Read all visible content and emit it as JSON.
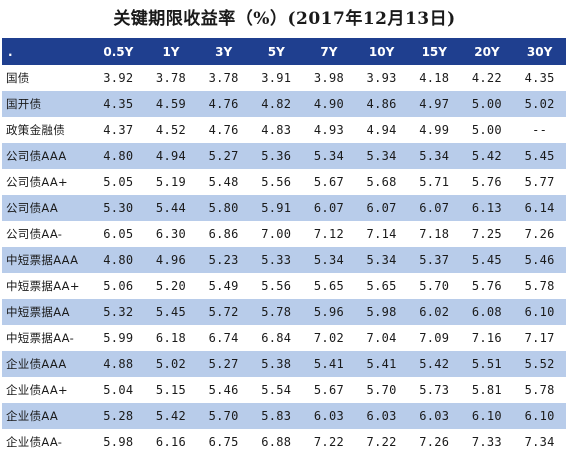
{
  "title": "关键期限收益率（%）(2017年12月13日)",
  "header": {
    "corner": ".",
    "columns": [
      "0.5Y",
      "1Y",
      "3Y",
      "5Y",
      "7Y",
      "10Y",
      "15Y",
      "20Y",
      "30Y"
    ]
  },
  "colors": {
    "header_bg": "#1f3f8f",
    "band": "#b8ccea"
  },
  "rows": [
    {
      "label": "国债",
      "values": [
        "3.92",
        "3.78",
        "3.78",
        "3.91",
        "3.98",
        "3.93",
        "4.18",
        "4.22",
        "4.35"
      ]
    },
    {
      "label": "国开债",
      "values": [
        "4.35",
        "4.59",
        "4.76",
        "4.82",
        "4.90",
        "4.86",
        "4.97",
        "5.00",
        "5.02"
      ]
    },
    {
      "label": "政策金融债",
      "values": [
        "4.37",
        "4.52",
        "4.76",
        "4.83",
        "4.93",
        "4.94",
        "4.99",
        "5.00",
        "--"
      ]
    },
    {
      "label": "公司债AAA",
      "values": [
        "4.80",
        "4.94",
        "5.27",
        "5.36",
        "5.34",
        "5.34",
        "5.34",
        "5.42",
        "5.45"
      ]
    },
    {
      "label": "公司债AA+",
      "values": [
        "5.05",
        "5.19",
        "5.48",
        "5.56",
        "5.67",
        "5.68",
        "5.71",
        "5.76",
        "5.77"
      ]
    },
    {
      "label": "公司债AA",
      "values": [
        "5.30",
        "5.44",
        "5.80",
        "5.91",
        "6.07",
        "6.07",
        "6.07",
        "6.13",
        "6.14"
      ]
    },
    {
      "label": "公司债AA-",
      "values": [
        "6.05",
        "6.30",
        "6.86",
        "7.00",
        "7.12",
        "7.14",
        "7.18",
        "7.25",
        "7.26"
      ]
    },
    {
      "label": "中短票据AAA",
      "values": [
        "4.80",
        "4.96",
        "5.23",
        "5.33",
        "5.34",
        "5.34",
        "5.37",
        "5.45",
        "5.46"
      ]
    },
    {
      "label": "中短票据AA+",
      "values": [
        "5.06",
        "5.20",
        "5.49",
        "5.56",
        "5.65",
        "5.65",
        "5.70",
        "5.76",
        "5.78"
      ]
    },
    {
      "label": "中短票据AA",
      "values": [
        "5.32",
        "5.45",
        "5.72",
        "5.78",
        "5.96",
        "5.98",
        "6.02",
        "6.08",
        "6.10"
      ]
    },
    {
      "label": "中短票据AA-",
      "values": [
        "5.99",
        "6.18",
        "6.74",
        "6.84",
        "7.02",
        "7.04",
        "7.09",
        "7.16",
        "7.17"
      ]
    },
    {
      "label": "企业债AAA",
      "values": [
        "4.88",
        "5.02",
        "5.27",
        "5.38",
        "5.41",
        "5.41",
        "5.42",
        "5.51",
        "5.52"
      ]
    },
    {
      "label": "企业债AA+",
      "values": [
        "5.04",
        "5.15",
        "5.46",
        "5.54",
        "5.67",
        "5.70",
        "5.73",
        "5.81",
        "5.78"
      ]
    },
    {
      "label": "企业债AA",
      "values": [
        "5.28",
        "5.42",
        "5.70",
        "5.83",
        "6.03",
        "6.03",
        "6.03",
        "6.10",
        "6.10"
      ]
    },
    {
      "label": "企业债AA-",
      "values": [
        "5.98",
        "6.16",
        "6.75",
        "6.88",
        "7.22",
        "7.22",
        "7.26",
        "7.33",
        "7.34"
      ]
    }
  ]
}
